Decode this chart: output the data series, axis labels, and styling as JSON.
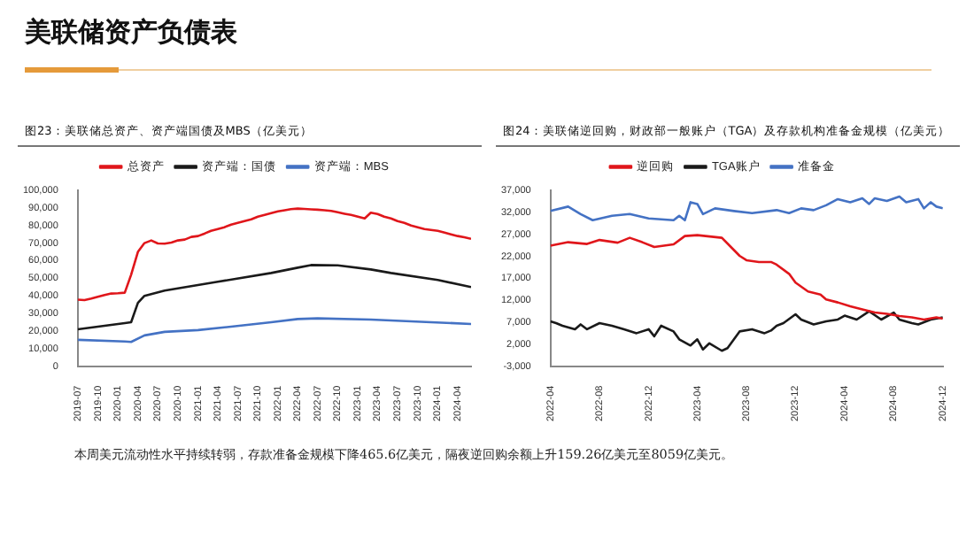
{
  "chart_data": [
    {
      "type": "line",
      "title": "图23：美联储总资产、资产端国债及MBS（亿美元）",
      "annotations": [
        "美联储资产负债表"
      ],
      "legend": "top",
      "grid": false,
      "marker": "none",
      "line_style": "solid",
      "xlim": [
        "2019-07",
        "2024-06"
      ],
      "xticks": [
        "2019-07",
        "2019-10",
        "2020-01",
        "2020-04",
        "2020-07",
        "2020-10",
        "2021-01",
        "2021-04",
        "2021-07",
        "2021-10",
        "2022-01",
        "2022-04",
        "2022-07",
        "2022-10",
        "2023-01",
        "2023-04",
        "2023-07",
        "2023-10",
        "2024-01",
        "2024-04"
      ],
      "ylim": [
        0,
        100000
      ],
      "yticks": [
        {
          "value": 0,
          "label": "0"
        },
        {
          "value": 10000,
          "label": "10,000"
        },
        {
          "value": 20000,
          "label": "20,000"
        },
        {
          "value": 30000,
          "label": "30,000"
        },
        {
          "value": 40000,
          "label": "40,000"
        },
        {
          "value": 50000,
          "label": "50,000"
        },
        {
          "value": 60000,
          "label": "60,000"
        },
        {
          "value": 70000,
          "label": "70,000"
        },
        {
          "value": 80000,
          "label": "80,000"
        },
        {
          "value": 90000,
          "label": "90,000"
        },
        {
          "value": 100000,
          "label": "100,000"
        }
      ],
      "series": [
        {
          "name": "总资产",
          "color": "#e0161b",
          "x": [
            "2019-07",
            "2019-08",
            "2019-09",
            "2019-10",
            "2019-11",
            "2019-12",
            "2020-01",
            "2020-02",
            "2020-03",
            "2020-04",
            "2020-05",
            "2020-06",
            "2020-07",
            "2020-08",
            "2020-09",
            "2020-10",
            "2020-11",
            "2020-12",
            "2021-01",
            "2021-02",
            "2021-03",
            "2021-04",
            "2021-05",
            "2021-06",
            "2021-07",
            "2021-08",
            "2021-09",
            "2021-10",
            "2021-11",
            "2021-12",
            "2022-01",
            "2022-02",
            "2022-03",
            "2022-04",
            "2022-05",
            "2022-06",
            "2022-07",
            "2022-08",
            "2022-09",
            "2022-10",
            "2022-11",
            "2022-12",
            "2023-01",
            "2023-02",
            "2023-03",
            "2023-04",
            "2023-05",
            "2023-06",
            "2023-07",
            "2023-08",
            "2023-09",
            "2023-10",
            "2023-11",
            "2023-12",
            "2024-01",
            "2024-02",
            "2024-03",
            "2024-04",
            "2024-05",
            "2024-06"
          ],
          "values": [
            37800,
            37600,
            38500,
            39500,
            40500,
            41300,
            41500,
            41800,
            52000,
            65000,
            70000,
            71500,
            69800,
            69700,
            70300,
            71500,
            72000,
            73500,
            74000,
            75500,
            77000,
            78000,
            79000,
            80500,
            81500,
            82500,
            83500,
            85000,
            86000,
            87000,
            88000,
            88700,
            89300,
            89600,
            89400,
            89200,
            89000,
            88700,
            88300,
            87500,
            86700,
            86000,
            85000,
            84000,
            87300,
            86500,
            85000,
            84000,
            82500,
            81500,
            80000,
            79000,
            78000,
            77500,
            77000,
            76000,
            75000,
            74000,
            73300,
            72400
          ]
        },
        {
          "name": "资产端：国债",
          "color": "#1a1a1a",
          "x": [
            "2019-07",
            "2020-02",
            "2020-03",
            "2020-04",
            "2020-05",
            "2020-08",
            "2021-04",
            "2021-12",
            "2022-04",
            "2022-06",
            "2022-10",
            "2023-03",
            "2023-06",
            "2024-01",
            "2024-06"
          ],
          "values": [
            21000,
            24500,
            25000,
            36000,
            40000,
            43000,
            48000,
            53000,
            56000,
            57500,
            57300,
            55000,
            53000,
            49000,
            45000
          ]
        },
        {
          "name": "资产端：MBS",
          "color": "#4472c4",
          "x": [
            "2019-07",
            "2020-02",
            "2020-03",
            "2020-05",
            "2020-08",
            "2021-01",
            "2021-06",
            "2021-12",
            "2022-04",
            "2022-07",
            "2023-03",
            "2023-12",
            "2024-06"
          ],
          "values": [
            15000,
            14000,
            13800,
            17500,
            19500,
            20500,
            22500,
            25000,
            26800,
            27200,
            26500,
            25000,
            24000
          ]
        }
      ]
    },
    {
      "type": "line",
      "title": "图24：美联储逆回购，财政部一般账户（TGA）及存款机构准备金规模（亿美元）",
      "annotations": [
        "本周美元流动性水平持续转弱，存款准备金规模下降465.6亿美元，隔夜逆回购余额上升159.26亿美元至8059亿美元。"
      ],
      "legend": "top",
      "grid": false,
      "marker": "none",
      "line_style": "solid",
      "xlim": [
        "2022-04-01",
        "2024-12-01"
      ],
      "xticks": [
        "2022-04",
        "2022-08",
        "2022-12",
        "2023-04",
        "2023-08",
        "2023-12",
        "2024-04",
        "2024-08",
        "2024-12"
      ],
      "ylim": [
        -3000,
        37000
      ],
      "yticks": [
        {
          "value": -3000,
          "label": "-3,000"
        },
        {
          "value": 2000,
          "label": "2,000"
        },
        {
          "value": 7000,
          "label": "7,000"
        },
        {
          "value": 12000,
          "label": "12,000"
        },
        {
          "value": 17000,
          "label": "17,000"
        },
        {
          "value": 22000,
          "label": "22,000"
        },
        {
          "value": 27000,
          "label": "27,000"
        },
        {
          "value": 32000,
          "label": "32,000"
        },
        {
          "value": 37000,
          "label": "37,000"
        }
      ],
      "series": [
        {
          "name": "逆回购",
          "color": "#e0161b",
          "x": [
            "2022-04-01",
            "2022-05-15",
            "2022-07-01",
            "2022-08-01",
            "2022-09-15",
            "2022-10-15",
            "2022-11-15",
            "2022-12-15",
            "2023-02-01",
            "2023-03-01",
            "2023-04-01",
            "2023-06-01",
            "2023-07-01",
            "2023-07-15",
            "2023-08-01",
            "2023-09-01",
            "2023-10-01",
            "2023-10-15",
            "2023-11-15",
            "2023-12-01",
            "2024-01-01",
            "2024-02-01",
            "2024-02-15",
            "2024-03-15",
            "2024-04-15",
            "2024-05-15",
            "2024-06-15",
            "2024-07-15",
            "2024-08-15",
            "2024-09-15",
            "2024-10-15",
            "2024-11-15",
            "2024-12-01"
          ],
          "values": [
            24400,
            25200,
            24800,
            25700,
            25100,
            26200,
            25200,
            24100,
            24700,
            26600,
            26800,
            26200,
            23400,
            22100,
            21100,
            20700,
            20700,
            20100,
            18000,
            16000,
            14000,
            13300,
            12200,
            11500,
            10600,
            9900,
            9200,
            8900,
            8400,
            8100,
            7600,
            8100,
            7800
          ]
        },
        {
          "name": "TGA账户",
          "color": "#1a1a1a",
          "x": [
            "2022-04-01",
            "2022-04-15",
            "2022-05-01",
            "2022-06-01",
            "2022-06-15",
            "2022-07-01",
            "2022-08-01",
            "2022-09-01",
            "2022-10-01",
            "2022-11-01",
            "2022-12-01",
            "2022-12-15",
            "2023-01-01",
            "2023-02-01",
            "2023-02-15",
            "2023-03-01",
            "2023-03-15",
            "2023-04-01",
            "2023-04-15",
            "2023-05-01",
            "2023-06-01",
            "2023-06-15",
            "2023-07-01",
            "2023-07-15",
            "2023-08-15",
            "2023-09-15",
            "2023-10-01",
            "2023-10-15",
            "2023-11-01",
            "2023-12-01",
            "2023-12-15",
            "2024-01-15",
            "2024-02-15",
            "2024-03-15",
            "2024-04-01",
            "2024-05-01",
            "2024-06-01",
            "2024-07-01",
            "2024-08-01",
            "2024-08-15",
            "2024-09-15",
            "2024-10-01",
            "2024-11-01",
            "2024-12-01"
          ],
          "values": [
            7200,
            6800,
            6200,
            5400,
            6500,
            5400,
            6800,
            6200,
            5400,
            4500,
            5400,
            3800,
            6200,
            4900,
            3100,
            2400,
            1700,
            3100,
            800,
            2200,
            500,
            1100,
            3100,
            4900,
            5400,
            4500,
            5100,
            6200,
            6800,
            8800,
            7600,
            6500,
            7200,
            7600,
            8500,
            7600,
            9500,
            7600,
            9200,
            7600,
            6800,
            6500,
            7600,
            8100
          ]
        },
        {
          "name": "准备金",
          "color": "#4472c4",
          "x": [
            "2022-04-01",
            "2022-05-15",
            "2022-06-15",
            "2022-07-15",
            "2022-09-01",
            "2022-10-15",
            "2022-12-01",
            "2023-02-01",
            "2023-02-15",
            "2023-03-01",
            "2023-03-15",
            "2023-04-01",
            "2023-04-15",
            "2023-05-15",
            "2023-07-01",
            "2023-08-15",
            "2023-10-15",
            "2023-11-15",
            "2023-12-15",
            "2024-01-15",
            "2024-02-15",
            "2024-03-15",
            "2024-04-15",
            "2024-05-15",
            "2024-06-01",
            "2024-06-15",
            "2024-07-15",
            "2024-08-15",
            "2024-09-01",
            "2024-10-01",
            "2024-10-15",
            "2024-11-01",
            "2024-11-15",
            "2024-12-01"
          ],
          "values": [
            32300,
            33300,
            31600,
            30200,
            31200,
            31600,
            30600,
            30200,
            31200,
            30200,
            34300,
            33900,
            31600,
            32900,
            32300,
            31800,
            32500,
            31800,
            32900,
            32500,
            33600,
            35000,
            34300,
            35200,
            33900,
            35200,
            34600,
            35600,
            34300,
            35000,
            32900,
            34300,
            33300,
            32900
          ]
        }
      ]
    }
  ]
}
